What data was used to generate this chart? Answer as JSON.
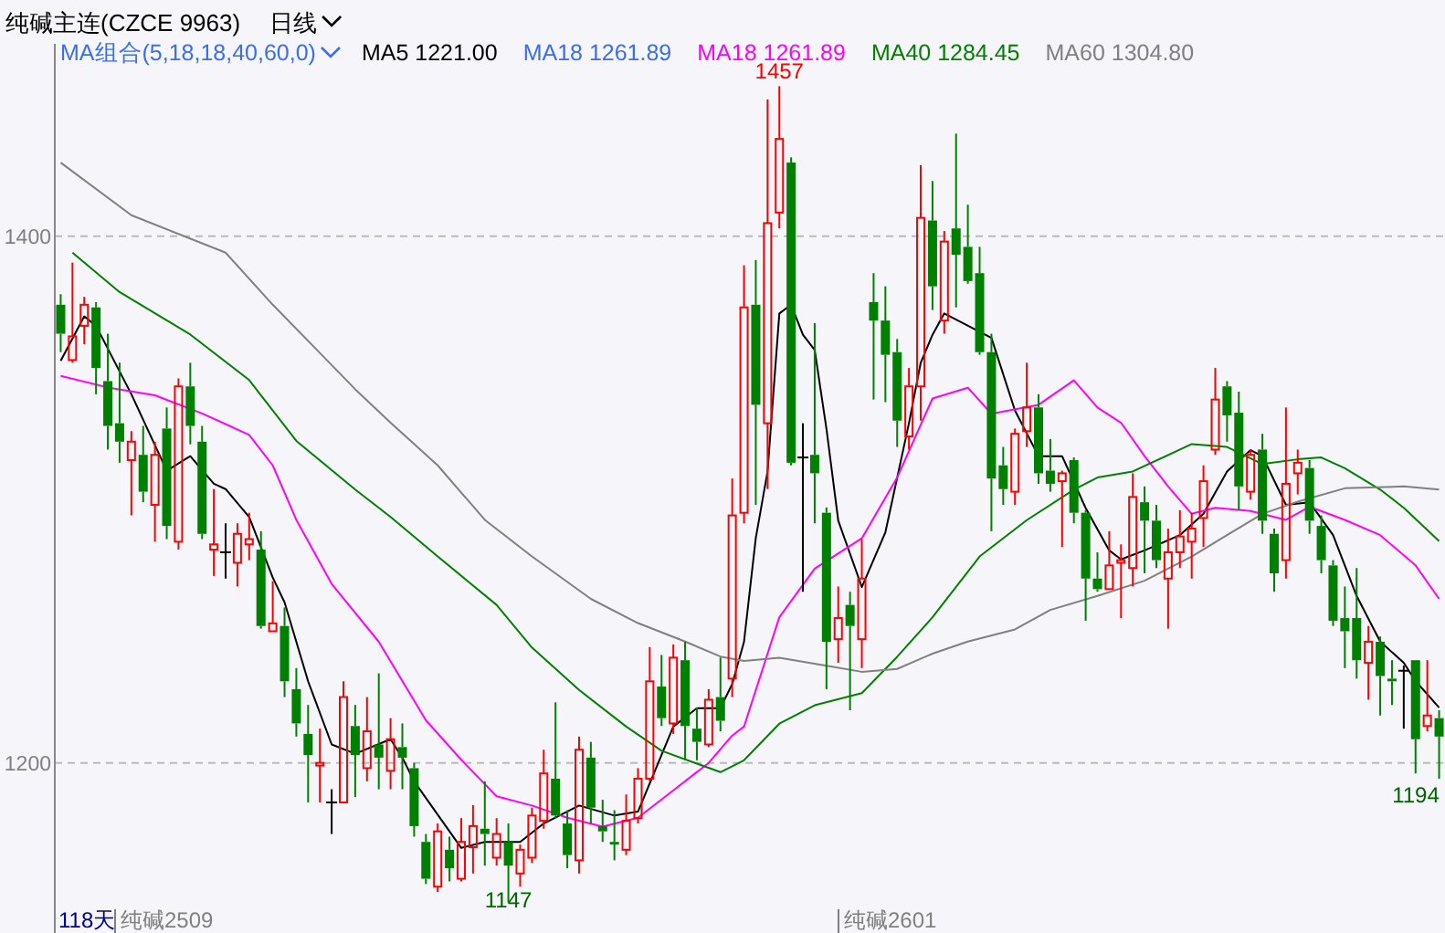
{
  "chart_data": {
    "type": "candlestick",
    "title": "纯碱主连(CZCE 9963)",
    "subtitle": "日线",
    "categories": [
      null,
      null,
      null,
      null,
      null,
      null,
      null,
      null,
      null,
      null,
      null,
      null,
      null,
      null,
      null,
      null,
      null,
      null,
      null,
      null,
      null,
      null,
      null,
      null,
      null,
      null,
      null,
      null,
      null,
      null,
      null,
      null,
      null,
      null,
      null,
      null,
      null,
      null,
      null,
      null,
      null,
      null,
      null,
      null,
      null,
      null,
      null,
      null,
      null,
      null,
      null,
      null,
      null,
      null,
      null,
      null,
      null,
      null,
      null,
      null,
      null,
      null,
      null,
      null,
      null,
      null,
      null,
      null,
      null,
      null,
      null,
      null,
      null,
      null,
      null,
      null,
      null,
      null,
      null,
      null,
      null,
      null,
      null,
      null,
      null,
      null,
      null,
      null,
      null,
      null,
      null,
      null,
      null,
      null,
      null,
      null,
      null,
      null,
      null,
      null,
      null,
      null,
      null,
      null,
      null,
      null,
      null,
      null,
      null,
      null,
      null,
      null,
      null,
      null,
      null,
      null,
      null,
      null
    ],
    "ohlc": [
      [
        1374,
        1378,
        1356,
        1363
      ],
      [
        1353,
        1390,
        1352,
        1362
      ],
      [
        1366,
        1377,
        1359,
        1374
      ],
      [
        1373,
        1375,
        1340,
        1350
      ],
      [
        1345,
        1363,
        1319,
        1328
      ],
      [
        1329,
        1352,
        1314,
        1322
      ],
      [
        1315,
        1326,
        1294,
        1322
      ],
      [
        1317,
        1328,
        1299,
        1303
      ],
      [
        1298,
        1322,
        1284,
        1317
      ],
      [
        1327,
        1335,
        1285,
        1290
      ],
      [
        1284,
        1346,
        1281,
        1343
      ],
      [
        1343,
        1352,
        1321,
        1328
      ],
      [
        1322,
        1328,
        1285,
        1287
      ],
      [
        1281,
        1304,
        1271,
        1283
      ],
      [
        1280,
        1291,
        1270,
        1280
      ],
      [
        1276,
        1291,
        1267,
        1287
      ],
      [
        1283,
        1295,
        1277,
        1285
      ],
      [
        1281,
        1288,
        1251,
        1252
      ],
      [
        1250,
        1269,
        1250,
        1253
      ],
      [
        1252,
        1259,
        1225,
        1231
      ],
      [
        1228,
        1236,
        1210,
        1215
      ],
      [
        1211,
        1222,
        1185,
        1203
      ],
      [
        1199,
        1213,
        1185,
        1200
      ],
      [
        1185,
        1190,
        1173,
        1185
      ],
      [
        1185,
        1231,
        1185,
        1225
      ],
      [
        1214,
        1222,
        1187,
        1203
      ],
      [
        1198,
        1225,
        1193,
        1212
      ],
      [
        1207,
        1234,
        1190,
        1202
      ],
      [
        1197,
        1217,
        1190,
        1209
      ],
      [
        1206,
        1215,
        1190,
        1202
      ],
      [
        1198,
        1200,
        1172,
        1176
      ],
      [
        1170,
        1173,
        1154,
        1156
      ],
      [
        1153,
        1177,
        1151,
        1174
      ],
      [
        1167,
        1172,
        1155,
        1160
      ],
      [
        1156,
        1179,
        1155,
        1170
      ],
      [
        1168,
        1184,
        1158,
        1176
      ],
      [
        1175,
        1193,
        1161,
        1173
      ],
      [
        1164,
        1179,
        1161,
        1173
      ],
      [
        1170,
        1177,
        1147,
        1161
      ],
      [
        1158,
        1169,
        1153,
        1167
      ],
      [
        1164,
        1183,
        1162,
        1180
      ],
      [
        1178,
        1205,
        1175,
        1196
      ],
      [
        1194,
        1223,
        1179,
        1180
      ],
      [
        1177,
        1182,
        1160,
        1165
      ],
      [
        1163,
        1210,
        1158,
        1205
      ],
      [
        1202,
        1208,
        1177,
        1183
      ],
      [
        1176,
        1186,
        1170,
        1174
      ],
      [
        1170,
        1182,
        1163,
        1169
      ],
      [
        1167,
        1188,
        1165,
        1178
      ],
      [
        1179,
        1198,
        1177,
        1194
      ],
      [
        1194,
        1244,
        1193,
        1231
      ],
      [
        1229,
        1241,
        1214,
        1217
      ],
      [
        1215,
        1245,
        1211,
        1240
      ],
      [
        1239,
        1246,
        1201,
        1214
      ],
      [
        1213,
        1221,
        1201,
        1208
      ],
      [
        1207,
        1228,
        1206,
        1224
      ],
      [
        1225,
        1240,
        1212,
        1216
      ],
      [
        1232,
        1308,
        1225,
        1294
      ],
      [
        1295,
        1389,
        1291,
        1373
      ],
      [
        1374,
        1391,
        1298,
        1336
      ],
      [
        1329,
        1452,
        1304,
        1405
      ],
      [
        1409,
        1457,
        1403,
        1437
      ],
      [
        1428,
        1430,
        1313,
        1314
      ],
      [
        1316,
        1329,
        1265,
        1316
      ],
      [
        1317,
        1367,
        1291,
        1310
      ],
      [
        1295,
        1297,
        1228,
        1246
      ],
      [
        1247,
        1267,
        1238,
        1255
      ],
      [
        1260,
        1265,
        1220,
        1252
      ],
      [
        1247,
        1285,
        1236,
        1270
      ],
      [
        1375,
        1386,
        1338,
        1368
      ],
      [
        1368,
        1381,
        1337,
        1355
      ],
      [
        1356,
        1361,
        1320,
        1330
      ],
      [
        1324,
        1350,
        1319,
        1343
      ],
      [
        1343,
        1427,
        1330,
        1407
      ],
      [
        1406,
        1421,
        1372,
        1381
      ],
      [
        1368,
        1402,
        1363,
        1398
      ],
      [
        1403,
        1439,
        1373,
        1393
      ],
      [
        1396,
        1412,
        1382,
        1383
      ],
      [
        1386,
        1396,
        1355,
        1356
      ],
      [
        1356,
        1363,
        1288,
        1308
      ],
      [
        1313,
        1320,
        1298,
        1304
      ],
      [
        1303,
        1327,
        1298,
        1325
      ],
      [
        1326,
        1352,
        1320,
        1335
      ],
      [
        1335,
        1340,
        1306,
        1310
      ],
      [
        1311,
        1323,
        1303,
        1306
      ],
      [
        1307,
        1311,
        1282,
        1310
      ],
      [
        1315,
        1316,
        1291,
        1295
      ],
      [
        1295,
        1296,
        1254,
        1270
      ],
      [
        1270,
        1280,
        1265,
        1266
      ],
      [
        1266,
        1288,
        1266,
        1275
      ],
      [
        1276,
        1283,
        1255,
        1277
      ],
      [
        1274,
        1310,
        1267,
        1301
      ],
      [
        1299,
        1305,
        1272,
        1292
      ],
      [
        1292,
        1298,
        1274,
        1277
      ],
      [
        1270,
        1289,
        1251,
        1280
      ],
      [
        1280,
        1296,
        1274,
        1286
      ],
      [
        1284,
        1295,
        1270,
        1289
      ],
      [
        1293,
        1313,
        1282,
        1307
      ],
      [
        1319,
        1350,
        1317,
        1338
      ],
      [
        1343,
        1345,
        1322,
        1332
      ],
      [
        1333,
        1341,
        1296,
        1305
      ],
      [
        1303,
        1319,
        1300,
        1317
      ],
      [
        1319,
        1325,
        1287,
        1292
      ],
      [
        1287,
        1289,
        1265,
        1272
      ],
      [
        1277,
        1335,
        1270,
        1306
      ],
      [
        1310,
        1319,
        1302,
        1314
      ],
      [
        1312,
        1315,
        1287,
        1292
      ],
      [
        1290,
        1294,
        1272,
        1277
      ],
      [
        1275,
        1277,
        1252,
        1254
      ],
      [
        1255,
        1267,
        1236,
        1250
      ],
      [
        1255,
        1274,
        1232,
        1239
      ],
      [
        1238,
        1252,
        1224,
        1246
      ],
      [
        1246,
        1248,
        1218,
        1233
      ],
      [
        1232,
        1239,
        1222,
        1231
      ],
      [
        1235,
        1237,
        1213,
        1235
      ],
      [
        1239,
        1239,
        1196,
        1209
      ],
      [
        1214,
        1239,
        1212,
        1218
      ],
      [
        1217,
        1220,
        1194,
        1210
      ]
    ],
    "series": [
      {
        "name": "MA5 1221.00",
        "type": "line",
        "color": "#000000",
        "values": [
          1352.7,
          null,
          1369.6,
          1366,
          null,
          null,
          1340,
          null,
          null,
          1311,
          null,
          1316.5,
          null,
          1306,
          1304,
          null,
          1293.4,
          null,
          1270.4,
          1261,
          null,
          1231,
          null,
          1207,
          null,
          1203.5,
          null,
          null,
          1209,
          1202,
          1193,
          null,
          null,
          null,
          1167.7,
          null,
          1170,
          null,
          null,
          1170,
          null,
          1177,
          null,
          null,
          1183.8,
          null,
          null,
          1180,
          null,
          1181.5,
          null,
          null,
          1213.8,
          null,
          1220.8,
          null,
          1220.8,
          1230,
          1246,
          1285.4,
          1310.7,
          1370.7,
          1374,
          1362.6,
          1356.8,
          1326.8,
          1292,
          null,
          1266.8,
          null,
          1287.6,
          null,
          1329,
          1352,
          1362.6,
          1370.7,
          null,
          null,
          null,
          1361.4,
          null,
          1333.8,
          null,
          1316.5,
          null,
          1316.5,
          null,
          1296.8,
          null,
          1280.7,
          1277.3,
          null,
          1280.7,
          null,
          null,
          1286.5,
          null,
          1294.6,
          null,
          1310.7,
          null,
          1318.8,
          1316.5,
          null,
          1298,
          null,
          1299,
          null,
          1286.5,
          null,
          1263.4,
          null,
          1246.1,
          null,
          1238,
          1231.1,
          null,
          1221
        ]
      },
      {
        "name": "MA18 1261.89",
        "type": "line",
        "color": "#3b6df0",
        "values": [
          null,
          null,
          null,
          null,
          null,
          null,
          null,
          null,
          null,
          null,
          null,
          null,
          null,
          null,
          null,
          null,
          null,
          null,
          null,
          null,
          null,
          null,
          null,
          null,
          null,
          null,
          null,
          null,
          null,
          null,
          null,
          null,
          null,
          null,
          null,
          null,
          null,
          null,
          null,
          null,
          null,
          null,
          null,
          null,
          null,
          null,
          null,
          null,
          null,
          null,
          null,
          null,
          null,
          null,
          null,
          null,
          null,
          null,
          null,
          null,
          null,
          null,
          null,
          null,
          null,
          null,
          null,
          null,
          null,
          null,
          null,
          null,
          null,
          null,
          null,
          null,
          null,
          null,
          null,
          null,
          null,
          null,
          null,
          null,
          null,
          null,
          null,
          null,
          null,
          null,
          null,
          null,
          null,
          null,
          null,
          null,
          null,
          null,
          null,
          null,
          null,
          null,
          null,
          null,
          null,
          null,
          null,
          null,
          null,
          null,
          null,
          null,
          null,
          null,
          null,
          null,
          null,
          null
        ]
      },
      {
        "name": "MA18 1261.89",
        "type": "line",
        "color": "#ff00ff",
        "values": [
          1347,
          null,
          null,
          null,
          1342.6,
          null,
          null,
          null,
          1339.6,
          null,
          null,
          null,
          1332.7,
          null,
          null,
          null,
          1324.6,
          null,
          1313,
          null,
          1292.3,
          null,
          null,
          1268,
          null,
          null,
          null,
          1246,
          null,
          null,
          null,
          1216.2,
          null,
          null,
          1201.2,
          null,
          null,
          1187.3,
          null,
          null,
          1183.8,
          null,
          null,
          1179.2,
          null,
          null,
          1175.8,
          null,
          null,
          1179.2,
          null,
          null,
          1189.6,
          null,
          null,
          1200,
          null,
          1210.4,
          1213.8,
          null,
          null,
          1255.3,
          null,
          null,
          1273.8,
          null,
          null,
          null,
          1285.3,
          null,
          null,
          1308.4,
          null,
          null,
          1338.4,
          null,
          null,
          1342.5,
          null,
          1332.6,
          null,
          null,
          null,
          1336,
          null,
          null,
          1345.3,
          null,
          1335,
          null,
          1329.2,
          null,
          1316.5,
          null,
          1305,
          null,
          1294.6,
          null,
          1296.9,
          null,
          null,
          1295.7,
          null,
          null,
          1292.3,
          null,
          1297.3,
          null,
          null,
          1292.3,
          null,
          null,
          1286.5,
          null,
          null,
          1275,
          null,
          1262.3
        ]
      },
      {
        "name": "MA40 1284.45",
        "type": "line",
        "color": "#008000",
        "values": [
          null,
          1393.8,
          null,
          null,
          null,
          1378.8,
          null,
          null,
          null,
          null,
          null,
          1362.7,
          null,
          null,
          null,
          null,
          1345.4,
          null,
          null,
          null,
          1322.3,
          null,
          null,
          null,
          null,
          1303.8,
          null,
          null,
          1293.4,
          null,
          null,
          null,
          1278.4,
          null,
          null,
          null,
          null,
          1260,
          null,
          null,
          1243.8,
          null,
          null,
          null,
          1227.7,
          null,
          null,
          null,
          1213.8,
          null,
          null,
          1204.6,
          null,
          null,
          null,
          null,
          1196.5,
          null,
          1201,
          null,
          null,
          1214.9,
          null,
          null,
          1221.9,
          null,
          null,
          null,
          1226.5,
          null,
          null,
          1240.3,
          null,
          null,
          1255.3,
          null,
          null,
          null,
          1278.4,
          null,
          null,
          null,
          1292.2,
          null,
          null,
          null,
          1303.8,
          null,
          1308.4,
          null,
          null,
          1310.7,
          null,
          null,
          null,
          null,
          1321.1,
          null,
          null,
          1320,
          null,
          null,
          1313.5,
          null,
          null,
          1315.3,
          null,
          1316,
          null,
          1311.9,
          null,
          null,
          1303.8,
          null,
          1296.9,
          null,
          null,
          1284.2
        ]
      },
      {
        "name": "MA60 1304.80",
        "type": "line",
        "color": "#808080",
        "values": [
          1428,
          null,
          null,
          null,
          null,
          null,
          1408,
          null,
          null,
          null,
          null,
          null,
          null,
          null,
          1393.8,
          null,
          null,
          null,
          1374,
          null,
          null,
          null,
          1355.7,
          null,
          null,
          1341.9,
          null,
          null,
          1329.2,
          null,
          null,
          null,
          1313,
          null,
          null,
          null,
          1292.3,
          null,
          null,
          null,
          1278.4,
          null,
          null,
          null,
          null,
          1262.3,
          null,
          null,
          null,
          1253.1,
          null,
          null,
          null,
          1246.1,
          null,
          null,
          1240.4,
          null,
          1238.7,
          null,
          null,
          1239.9,
          null,
          null,
          null,
          1236.9,
          null,
          null,
          1234.6,
          null,
          null,
          1235.7,
          null,
          null,
          1241.5,
          null,
          null,
          1246.1,
          null,
          null,
          null,
          1250.7,
          null,
          null,
          1258.1,
          null,
          null,
          null,
          1263.4,
          null,
          null,
          null,
          1269.2,
          null,
          null,
          null,
          1278.4,
          null,
          null,
          1286.5,
          null,
          null,
          1294.6,
          null,
          null,
          1299.2,
          null,
          null,
          null,
          1304.3,
          null,
          null,
          null,
          null,
          1305,
          null,
          null,
          1303.8
        ]
      }
    ],
    "ylim": [
      1135.4,
      1473.1
    ],
    "yticks": [
      1200,
      1400
    ],
    "grid": "y",
    "tick_labels": "y",
    "legend": "top left",
    "line_style": "solid",
    "annotations": [
      "MA组合(5,18,18,40,60,0)",
      "118天",
      "纯碱2509",
      "纯碱2601",
      "1457",
      "1147",
      "1194"
    ]
  }
}
